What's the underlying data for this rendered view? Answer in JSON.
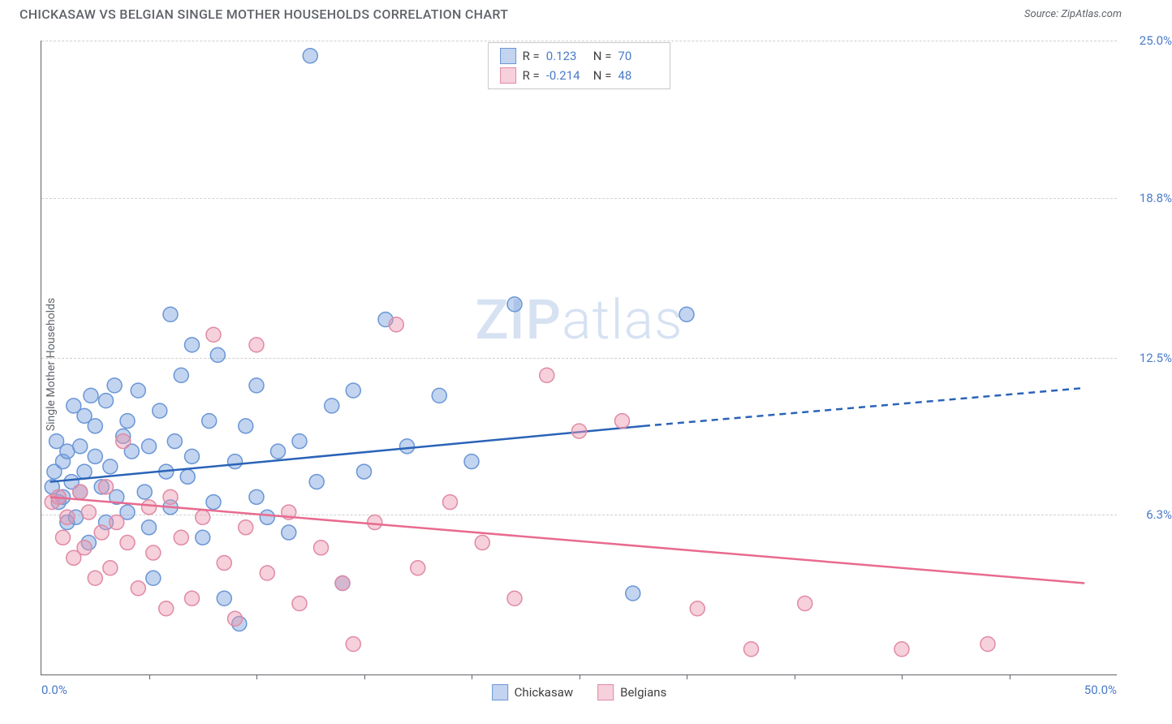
{
  "title": "CHICKASAW VS BELGIAN SINGLE MOTHER HOUSEHOLDS CORRELATION CHART",
  "source_label": "Source:",
  "source_name": "ZipAtlas.com",
  "watermark_a": "ZIP",
  "watermark_b": "atlas",
  "chart": {
    "type": "scatter",
    "ylabel": "Single Mother Households",
    "xlim": [
      0,
      50
    ],
    "ylim": [
      0,
      25
    ],
    "background_color": "#ffffff",
    "grid_color": "#d0d0d0",
    "grid_dash": "4,4",
    "axis_color": "#5f6368",
    "yticks": [
      {
        "v": 6.3,
        "label": "6.3%"
      },
      {
        "v": 12.5,
        "label": "12.5%"
      },
      {
        "v": 18.8,
        "label": "18.8%"
      },
      {
        "v": 25.0,
        "label": "25.0%"
      }
    ],
    "xtick_marks": [
      5,
      10,
      15,
      20,
      25,
      30,
      35,
      40,
      45
    ],
    "xlabels": [
      {
        "v": 0,
        "label": "0.0%",
        "align": "left"
      },
      {
        "v": 50,
        "label": "50.0%",
        "align": "right"
      }
    ],
    "marker_radius": 9,
    "marker_stroke_width": 1.5,
    "series": [
      {
        "name": "Chickasaw",
        "fill": "rgba(120,160,220,0.45)",
        "stroke": "#6a96d6",
        "line_color": "#2a63b8",
        "line_width": 2.5,
        "r_value": "0.123",
        "n_value": "70",
        "trend": {
          "x1": 0.4,
          "y1": 7.6,
          "x2": 28,
          "y2": 9.8,
          "x3": 48.5,
          "y3": 11.3,
          "dash_after_x": 28
        },
        "points": [
          [
            0.5,
            7.4
          ],
          [
            0.6,
            8.0
          ],
          [
            0.7,
            9.2
          ],
          [
            0.8,
            6.8
          ],
          [
            1.0,
            7.0
          ],
          [
            1.0,
            8.4
          ],
          [
            1.2,
            6.0
          ],
          [
            1.2,
            8.8
          ],
          [
            1.4,
            7.6
          ],
          [
            1.5,
            10.6
          ],
          [
            1.6,
            6.2
          ],
          [
            1.8,
            9.0
          ],
          [
            1.8,
            7.2
          ],
          [
            2.0,
            10.2
          ],
          [
            2.0,
            8.0
          ],
          [
            2.2,
            5.2
          ],
          [
            2.3,
            11.0
          ],
          [
            2.5,
            8.6
          ],
          [
            2.5,
            9.8
          ],
          [
            2.8,
            7.4
          ],
          [
            3.0,
            6.0
          ],
          [
            3.0,
            10.8
          ],
          [
            3.2,
            8.2
          ],
          [
            3.4,
            11.4
          ],
          [
            3.5,
            7.0
          ],
          [
            3.8,
            9.4
          ],
          [
            4.0,
            6.4
          ],
          [
            4.0,
            10.0
          ],
          [
            4.2,
            8.8
          ],
          [
            4.5,
            11.2
          ],
          [
            4.8,
            7.2
          ],
          [
            5.0,
            5.8
          ],
          [
            5.0,
            9.0
          ],
          [
            5.2,
            3.8
          ],
          [
            5.5,
            10.4
          ],
          [
            5.8,
            8.0
          ],
          [
            6.0,
            6.6
          ],
          [
            6.0,
            14.2
          ],
          [
            6.2,
            9.2
          ],
          [
            6.5,
            11.8
          ],
          [
            6.8,
            7.8
          ],
          [
            7.0,
            13.0
          ],
          [
            7.0,
            8.6
          ],
          [
            7.5,
            5.4
          ],
          [
            7.8,
            10.0
          ],
          [
            8.0,
            6.8
          ],
          [
            8.2,
            12.6
          ],
          [
            8.5,
            3.0
          ],
          [
            9.0,
            8.4
          ],
          [
            9.2,
            2.0
          ],
          [
            9.5,
            9.8
          ],
          [
            10.0,
            7.0
          ],
          [
            10.0,
            11.4
          ],
          [
            10.5,
            6.2
          ],
          [
            11.0,
            8.8
          ],
          [
            11.5,
            5.6
          ],
          [
            12.0,
            9.2
          ],
          [
            12.5,
            24.4
          ],
          [
            12.8,
            7.6
          ],
          [
            13.5,
            10.6
          ],
          [
            14.0,
            3.6
          ],
          [
            14.5,
            11.2
          ],
          [
            15.0,
            8.0
          ],
          [
            16.0,
            14.0
          ],
          [
            17.0,
            9.0
          ],
          [
            18.5,
            11.0
          ],
          [
            20.0,
            8.4
          ],
          [
            22.0,
            14.6
          ],
          [
            27.5,
            3.2
          ],
          [
            30.0,
            14.2
          ]
        ]
      },
      {
        "name": "Belgians",
        "fill": "rgba(235,150,175,0.45)",
        "stroke": "#e08aa5",
        "line_color": "#e86b8f",
        "line_width": 2.5,
        "r_value": "-0.214",
        "n_value": "48",
        "trend": {
          "x1": 0.4,
          "y1": 7.0,
          "x2": 48.5,
          "y2": 3.6
        },
        "points": [
          [
            0.5,
            6.8
          ],
          [
            0.8,
            7.0
          ],
          [
            1.0,
            5.4
          ],
          [
            1.2,
            6.2
          ],
          [
            1.5,
            4.6
          ],
          [
            1.8,
            7.2
          ],
          [
            2.0,
            5.0
          ],
          [
            2.2,
            6.4
          ],
          [
            2.5,
            3.8
          ],
          [
            2.8,
            5.6
          ],
          [
            3.0,
            7.4
          ],
          [
            3.2,
            4.2
          ],
          [
            3.5,
            6.0
          ],
          [
            3.8,
            9.2
          ],
          [
            4.0,
            5.2
          ],
          [
            4.5,
            3.4
          ],
          [
            5.0,
            6.6
          ],
          [
            5.2,
            4.8
          ],
          [
            5.8,
            2.6
          ],
          [
            6.0,
            7.0
          ],
          [
            6.5,
            5.4
          ],
          [
            7.0,
            3.0
          ],
          [
            7.5,
            6.2
          ],
          [
            8.0,
            13.4
          ],
          [
            8.5,
            4.4
          ],
          [
            9.0,
            2.2
          ],
          [
            9.5,
            5.8
          ],
          [
            10.0,
            13.0
          ],
          [
            10.5,
            4.0
          ],
          [
            11.5,
            6.4
          ],
          [
            12.0,
            2.8
          ],
          [
            13.0,
            5.0
          ],
          [
            14.0,
            3.6
          ],
          [
            14.5,
            1.2
          ],
          [
            15.5,
            6.0
          ],
          [
            16.5,
            13.8
          ],
          [
            17.5,
            4.2
          ],
          [
            19.0,
            6.8
          ],
          [
            20.5,
            5.2
          ],
          [
            22.0,
            3.0
          ],
          [
            23.5,
            11.8
          ],
          [
            25.0,
            9.6
          ],
          [
            27.0,
            10.0
          ],
          [
            30.5,
            2.6
          ],
          [
            33.0,
            1.0
          ],
          [
            35.5,
            2.8
          ],
          [
            40.0,
            1.0
          ],
          [
            44.0,
            1.2
          ]
        ]
      }
    ],
    "legend_top": {
      "r_label": "R =",
      "n_label": "N ="
    },
    "legend_bottom": [
      {
        "label": "Chickasaw",
        "fill": "rgba(120,160,220,0.45)",
        "stroke": "#6a96d6"
      },
      {
        "label": "Belgians",
        "fill": "rgba(235,150,175,0.45)",
        "stroke": "#e08aa5"
      }
    ]
  }
}
